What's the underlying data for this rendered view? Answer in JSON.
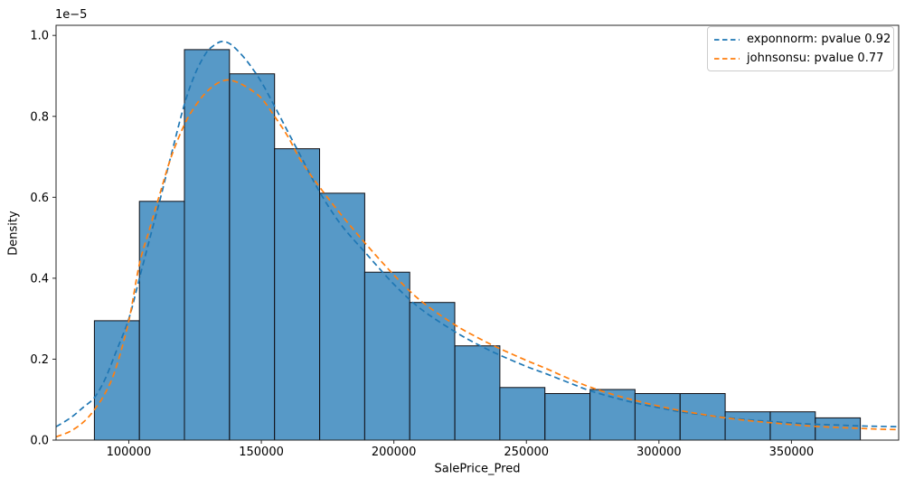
{
  "chart_data": {
    "type": "histogram",
    "title": "",
    "xlabel": "SalePrice_Pred",
    "ylabel": "Density",
    "y_offset_text": "1e−5",
    "xlim": [
      72550,
      390450
    ],
    "ylim_1e5": [
      0,
      1.025
    ],
    "x_ticks": [
      100000,
      150000,
      200000,
      250000,
      300000,
      350000
    ],
    "y_ticks_1e5": [
      0.0,
      0.2,
      0.4,
      0.6,
      0.8,
      1.0
    ],
    "grid": "off",
    "legend_position": "upper right",
    "histogram": {
      "bin_start": 87000,
      "bin_width": 17000,
      "bar_fill": "#5799c7",
      "bar_edge": "#0e0e14",
      "densities_1e5": [
        0.295,
        0.59,
        0.965,
        0.905,
        0.72,
        0.61,
        0.415,
        0.34,
        0.233,
        0.13,
        0.115,
        0.125,
        0.115,
        0.115,
        0.07,
        0.07,
        0.055
      ]
    },
    "series": [
      {
        "name": "exponnorm",
        "label": "exponnorm: pvalue 0.92",
        "color": "#1f77b4",
        "linestyle": "dashed",
        "points": [
          [
            72550,
            0.033
          ],
          [
            78000,
            0.055
          ],
          [
            83000,
            0.082
          ],
          [
            87000,
            0.105
          ],
          [
            91000,
            0.15
          ],
          [
            95000,
            0.215
          ],
          [
            100000,
            0.3
          ],
          [
            104000,
            0.4
          ],
          [
            108000,
            0.5
          ],
          [
            112000,
            0.6
          ],
          [
            116000,
            0.705
          ],
          [
            121000,
            0.83
          ],
          [
            125000,
            0.905
          ],
          [
            129000,
            0.955
          ],
          [
            132000,
            0.975
          ],
          [
            135000,
            0.985
          ],
          [
            138000,
            0.98
          ],
          [
            141000,
            0.963
          ],
          [
            145000,
            0.933
          ],
          [
            150000,
            0.885
          ],
          [
            155000,
            0.825
          ],
          [
            160000,
            0.762
          ],
          [
            165000,
            0.7
          ],
          [
            172000,
            0.613
          ],
          [
            180000,
            0.533
          ],
          [
            189000,
            0.465
          ],
          [
            200000,
            0.385
          ],
          [
            210000,
            0.325
          ],
          [
            223000,
            0.268
          ],
          [
            232000,
            0.235
          ],
          [
            240000,
            0.21
          ],
          [
            250000,
            0.182
          ],
          [
            257000,
            0.165
          ],
          [
            266000,
            0.142
          ],
          [
            274000,
            0.122
          ],
          [
            283000,
            0.105
          ],
          [
            291000,
            0.092
          ],
          [
            300000,
            0.08
          ],
          [
            308000,
            0.07
          ],
          [
            317000,
            0.062
          ],
          [
            325000,
            0.056
          ],
          [
            334000,
            0.05
          ],
          [
            342000,
            0.046
          ],
          [
            351000,
            0.042
          ],
          [
            359000,
            0.039
          ],
          [
            368000,
            0.037
          ],
          [
            376000,
            0.035
          ],
          [
            383000,
            0.034
          ],
          [
            390450,
            0.033
          ]
        ]
      },
      {
        "name": "johnsonsu",
        "label": "johnsonsu: pvalue 0.77",
        "color": "#ff7f0e",
        "linestyle": "dashed",
        "points": [
          [
            72550,
            0.008
          ],
          [
            78000,
            0.022
          ],
          [
            83000,
            0.045
          ],
          [
            87000,
            0.075
          ],
          [
            91000,
            0.115
          ],
          [
            95000,
            0.175
          ],
          [
            100000,
            0.295
          ],
          [
            104000,
            0.435
          ],
          [
            108000,
            0.525
          ],
          [
            112000,
            0.615
          ],
          [
            116000,
            0.7
          ],
          [
            121000,
            0.78
          ],
          [
            125000,
            0.825
          ],
          [
            129000,
            0.858
          ],
          [
            133000,
            0.88
          ],
          [
            137000,
            0.89
          ],
          [
            141000,
            0.884
          ],
          [
            145000,
            0.87
          ],
          [
            150000,
            0.845
          ],
          [
            155000,
            0.8
          ],
          [
            160000,
            0.75
          ],
          [
            165000,
            0.69
          ],
          [
            172000,
            0.625
          ],
          [
            180000,
            0.558
          ],
          [
            189000,
            0.488
          ],
          [
            200000,
            0.408
          ],
          [
            210000,
            0.345
          ],
          [
            223000,
            0.285
          ],
          [
            232000,
            0.252
          ],
          [
            240000,
            0.226
          ],
          [
            250000,
            0.197
          ],
          [
            257000,
            0.178
          ],
          [
            266000,
            0.152
          ],
          [
            274000,
            0.131
          ],
          [
            283000,
            0.112
          ],
          [
            291000,
            0.098
          ],
          [
            300000,
            0.084
          ],
          [
            308000,
            0.073
          ],
          [
            317000,
            0.063
          ],
          [
            325000,
            0.055
          ],
          [
            334000,
            0.048
          ],
          [
            342000,
            0.043
          ],
          [
            351000,
            0.038
          ],
          [
            359000,
            0.034
          ],
          [
            368000,
            0.031
          ],
          [
            376000,
            0.029
          ],
          [
            383000,
            0.027
          ],
          [
            390450,
            0.026
          ]
        ]
      }
    ]
  }
}
